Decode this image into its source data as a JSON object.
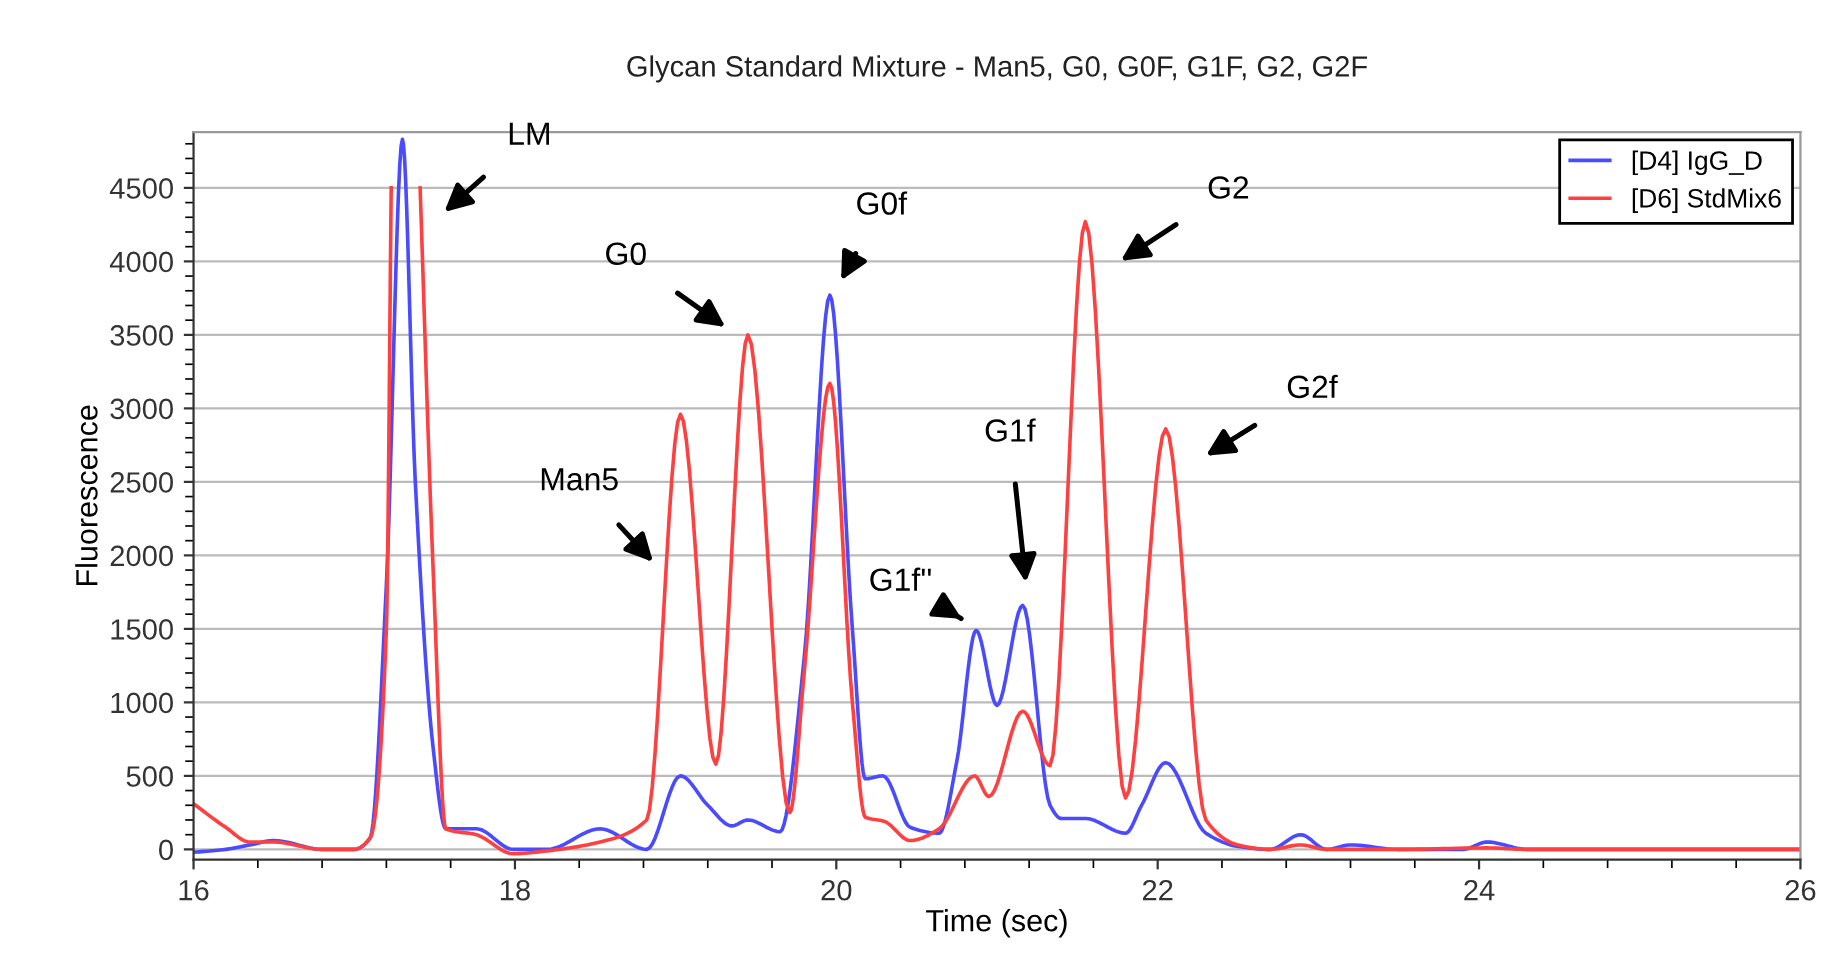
{
  "chart_data": {
    "type": "line",
    "title": "Glycan Standard Mixture - Man5, G0, G0F, G1F, G2, G2F",
    "xlabel": "Time (sec)",
    "ylabel": "Fluorescence",
    "xlim": [
      16,
      26
    ],
    "xticks": [
      16,
      18,
      20,
      22,
      24,
      26
    ],
    "ylim": [
      -70,
      4880
    ],
    "yticks": [
      0,
      500,
      1000,
      1500,
      2000,
      2500,
      3000,
      3500,
      4000,
      4500
    ],
    "grid": "y",
    "legend": "top right",
    "line_style": "solid",
    "marker": "none",
    "series": [
      {
        "name": "[D4] IgG_D",
        "color": "#4a4aff",
        "x": [
          16.0,
          16.2,
          16.35,
          16.5,
          16.8,
          17.0,
          17.1,
          17.2,
          17.3,
          17.38,
          17.49,
          17.57,
          17.76,
          17.99,
          18.2,
          18.53,
          18.82,
          19.03,
          19.2,
          19.35,
          19.45,
          19.65,
          19.8,
          19.96,
          20.1,
          20.18,
          20.29,
          20.46,
          20.64,
          20.75,
          20.87,
          21.0,
          21.16,
          21.33,
          21.4,
          21.55,
          21.8,
          21.9,
          22.05,
          22.3,
          22.5,
          22.7,
          22.89,
          23.05,
          23.2,
          23.5,
          23.9,
          24.05,
          24.3,
          26.0
        ],
        "values": [
          -20,
          0,
          30,
          60,
          0,
          0,
          80,
          1800,
          4830,
          2500,
          700,
          140,
          140,
          0,
          0,
          140,
          0,
          500,
          300,
          160,
          200,
          120,
          1300,
          3770,
          1500,
          480,
          500,
          150,
          110,
          600,
          1490,
          980,
          1660,
          300,
          210,
          210,
          110,
          300,
          590,
          110,
          20,
          0,
          100,
          0,
          30,
          0,
          0,
          50,
          0,
          0
        ]
      },
      {
        "name": "[D6] StdMix6",
        "color": "#ff4040",
        "x": [
          16.0,
          16.2,
          16.35,
          16.5,
          16.8,
          17.0,
          17.1,
          17.2,
          17.23,
          17.3,
          17.41,
          17.49,
          17.57,
          17.76,
          17.99,
          18.2,
          18.53,
          18.82,
          19.03,
          19.25,
          19.45,
          19.71,
          19.8,
          19.96,
          20.1,
          20.18,
          20.3,
          20.46,
          20.64,
          20.86,
          20.95,
          21.16,
          21.33,
          21.55,
          21.8,
          22.05,
          22.3,
          22.5,
          22.7,
          22.89,
          23.05,
          23.5,
          24.05,
          24.3,
          26.0
        ],
        "values": [
          310,
          150,
          50,
          50,
          0,
          0,
          80,
          1500,
          4500,
          null,
          4500,
          1930,
          140,
          100,
          -30,
          -10,
          50,
          200,
          2960,
          580,
          3500,
          250,
          1200,
          3170,
          1000,
          220,
          190,
          60,
          140,
          500,
          360,
          940,
          570,
          4270,
          350,
          2860,
          200,
          30,
          0,
          30,
          0,
          0,
          10,
          0,
          0
        ]
      }
    ],
    "annotations": [
      "LM",
      "G0",
      "G0f",
      "Man5",
      "G1f''",
      "G1f",
      "G2",
      "G2f"
    ]
  }
}
